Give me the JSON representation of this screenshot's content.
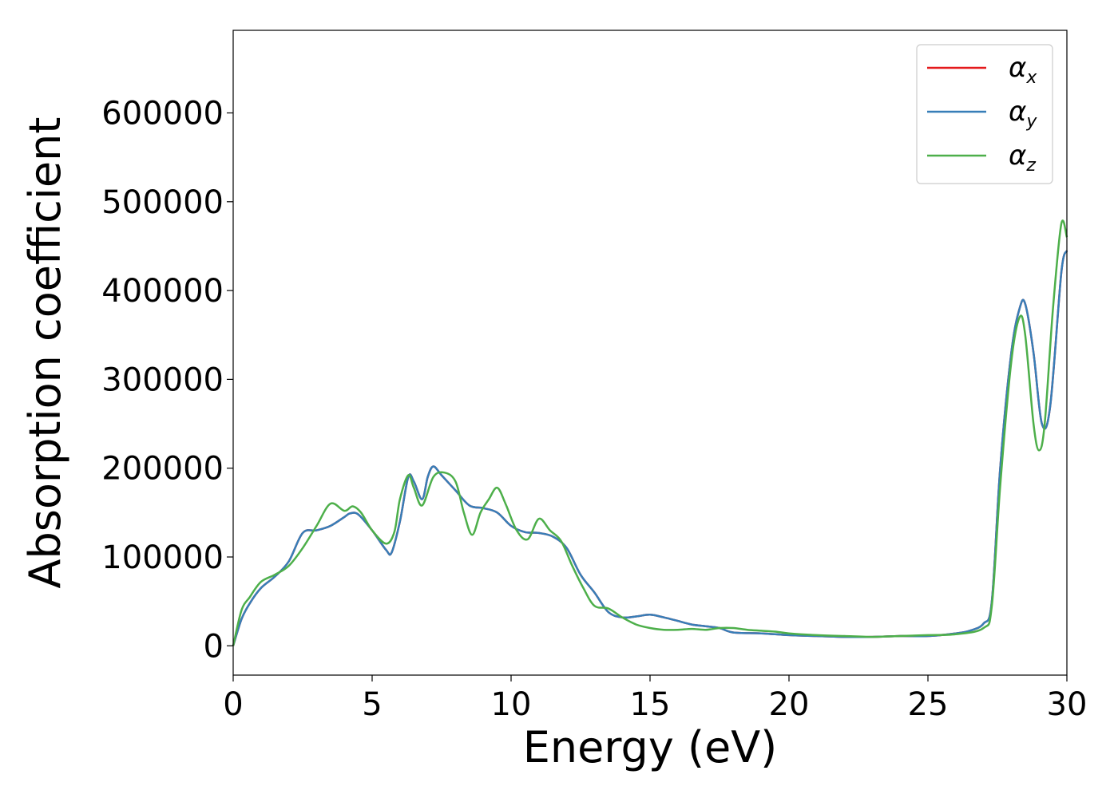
{
  "chart_data": {
    "type": "line",
    "title": "",
    "xlabel": "Energy (eV)",
    "ylabel": "Absorption coefficient",
    "xlim": [
      0,
      30
    ],
    "ylim": [
      -33000,
      693000
    ],
    "xticks": [
      0,
      5,
      10,
      15,
      20,
      25,
      30
    ],
    "yticks": [
      0,
      100000,
      200000,
      300000,
      400000,
      500000,
      600000
    ],
    "xtick_labels": [
      "0",
      "5",
      "10",
      "15",
      "20",
      "25",
      "30"
    ],
    "ytick_labels": [
      "0",
      "100000",
      "200000",
      "300000",
      "400000",
      "500000",
      "600000"
    ],
    "grid": false,
    "legend_position": "top-right",
    "series": [
      {
        "name": "α",
        "subscript": "x",
        "color": "#e41a1c",
        "x": [
          0,
          0.3,
          0.6,
          1,
          1.5,
          2,
          2.5,
          3,
          3.5,
          4,
          4.2,
          4.5,
          5,
          5.5,
          5.7,
          6,
          6.3,
          6.5,
          6.8,
          7,
          7.2,
          7.5,
          8,
          8.5,
          9,
          9.5,
          10,
          10.5,
          11,
          11.5,
          12,
          12.5,
          13,
          13.5,
          14,
          14.5,
          15,
          15.5,
          16,
          16.5,
          17,
          17.5,
          18,
          19,
          20,
          21,
          22,
          23,
          24,
          25,
          26,
          26.5,
          27,
          27.3,
          27.6,
          28,
          28.3,
          28.5,
          28.8,
          29.1,
          29.4,
          29.8,
          30
        ],
        "y": [
          0,
          30000,
          48000,
          65000,
          78000,
          95000,
          127000,
          130000,
          135000,
          145000,
          149000,
          148000,
          130000,
          108000,
          105000,
          140000,
          190000,
          185000,
          165000,
          190000,
          202000,
          192000,
          175000,
          158000,
          155000,
          150000,
          135000,
          128000,
          127000,
          123000,
          110000,
          80000,
          60000,
          38000,
          32000,
          33000,
          35000,
          32000,
          28000,
          24000,
          22000,
          20000,
          15000,
          14000,
          12000,
          11000,
          10000,
          10000,
          11000,
          11000,
          14000,
          17000,
          25000,
          50000,
          200000,
          330000,
          380000,
          385000,
          330000,
          250000,
          270000,
          420000,
          445000
        ]
      },
      {
        "name": "α",
        "subscript": "y",
        "color": "#377eb8",
        "x": [
          0,
          0.3,
          0.6,
          1,
          1.5,
          2,
          2.5,
          3,
          3.5,
          4,
          4.2,
          4.5,
          5,
          5.5,
          5.7,
          6,
          6.3,
          6.5,
          6.8,
          7,
          7.2,
          7.5,
          8,
          8.5,
          9,
          9.5,
          10,
          10.5,
          11,
          11.5,
          12,
          12.5,
          13,
          13.5,
          14,
          14.5,
          15,
          15.5,
          16,
          16.5,
          17,
          17.5,
          18,
          19,
          20,
          21,
          22,
          23,
          24,
          25,
          26,
          26.5,
          27,
          27.3,
          27.6,
          28,
          28.3,
          28.5,
          28.8,
          29.1,
          29.4,
          29.8,
          30
        ],
        "y": [
          0,
          30000,
          48000,
          65000,
          78000,
          95000,
          127000,
          130000,
          135000,
          145000,
          149000,
          148000,
          130000,
          108000,
          105000,
          140000,
          190000,
          185000,
          165000,
          190000,
          202000,
          192000,
          175000,
          158000,
          155000,
          150000,
          135000,
          128000,
          127000,
          123000,
          110000,
          80000,
          60000,
          38000,
          32000,
          33000,
          35000,
          32000,
          28000,
          24000,
          22000,
          20000,
          15000,
          14000,
          12000,
          11000,
          10000,
          10000,
          11000,
          11000,
          14000,
          17000,
          25000,
          50000,
          200000,
          330000,
          380000,
          385000,
          330000,
          250000,
          270000,
          420000,
          445000
        ]
      },
      {
        "name": "α",
        "subscript": "z",
        "color": "#4daf4a",
        "x": [
          0,
          0.3,
          0.6,
          1,
          1.5,
          2,
          2.5,
          3,
          3.5,
          4,
          4.3,
          4.6,
          5,
          5.5,
          5.8,
          6,
          6.3,
          6.5,
          6.8,
          7.2,
          7.6,
          8,
          8.3,
          8.6,
          8.9,
          9.2,
          9.5,
          9.8,
          10.2,
          10.6,
          11,
          11.4,
          11.8,
          12.2,
          12.6,
          13,
          13.5,
          14,
          14.5,
          15,
          15.5,
          16,
          16.5,
          17,
          17.5,
          18,
          18.5,
          19,
          19.5,
          20,
          21,
          22,
          23,
          24,
          25,
          26,
          27,
          27.3,
          27.6,
          28,
          28.3,
          28.5,
          28.8,
          29,
          29.2,
          29.5,
          29.8,
          30
        ],
        "y": [
          0,
          40000,
          55000,
          72000,
          80000,
          90000,
          110000,
          135000,
          160000,
          152000,
          157000,
          150000,
          130000,
          115000,
          128000,
          165000,
          192000,
          178000,
          158000,
          190000,
          195000,
          185000,
          150000,
          125000,
          150000,
          165000,
          178000,
          160000,
          130000,
          120000,
          143000,
          130000,
          118000,
          90000,
          65000,
          45000,
          42000,
          32000,
          24000,
          20000,
          18000,
          18000,
          19000,
          18000,
          20000,
          20000,
          18000,
          17000,
          16000,
          14000,
          12000,
          11000,
          10000,
          11000,
          12000,
          13000,
          20000,
          45000,
          180000,
          320000,
          370000,
          350000,
          250000,
          220000,
          250000,
          380000,
          475000,
          460000
        ]
      }
    ]
  }
}
